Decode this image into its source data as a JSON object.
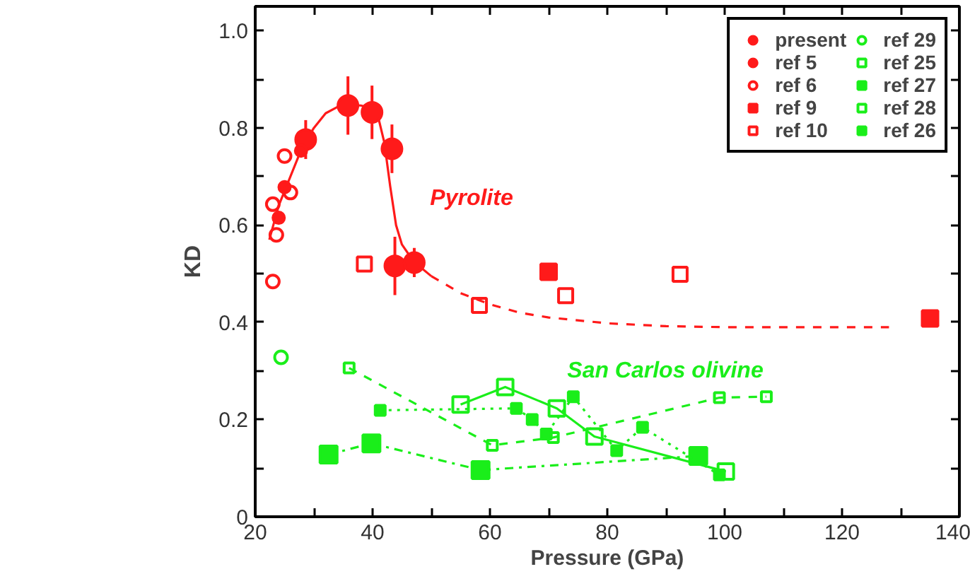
{
  "chart_data": {
    "type": "scatter",
    "xlabel": "Pressure (GPa)",
    "ylabel": "KD",
    "xlim": [
      20,
      140
    ],
    "ylim": [
      0,
      1.05
    ],
    "xticks": [
      20,
      {
        "value": 30,
        "label": null
      },
      40,
      {
        "value": 50,
        "label": null
      },
      60,
      {
        "value": 70,
        "label": null
      },
      80,
      {
        "value": 90,
        "label": null
      },
      100,
      {
        "value": 110,
        "label": null
      },
      120,
      {
        "value": 130,
        "label": null
      },
      140
    ],
    "yticks": [
      {
        "value": 0,
        "label": "0"
      },
      {
        "value": 0.1,
        "label": null
      },
      {
        "value": 0.2,
        "label": "0.2"
      },
      {
        "value": 0.3,
        "label": null
      },
      {
        "value": 0.4,
        "label": "0.4"
      },
      {
        "value": 0.5,
        "label": null
      },
      {
        "value": 0.6,
        "label": "0.6"
      },
      {
        "value": 0.7,
        "label": null
      },
      {
        "value": 0.8,
        "label": "0.8"
      },
      {
        "value": 0.9,
        "label": null
      },
      {
        "value": 1.0,
        "label": "1.0"
      }
    ],
    "grid": false,
    "legend": "top right",
    "series": [
      {
        "type": "line",
        "color": "#ff1a1a",
        "line_style": "solid",
        "marker": "none",
        "x": [
          22.4,
          24,
          26,
          28,
          30,
          32,
          34,
          36,
          38,
          40,
          41,
          42,
          43,
          44,
          45,
          47,
          50
        ],
        "values": [
          0.57,
          0.64,
          0.7,
          0.76,
          0.8,
          0.83,
          0.843,
          0.847,
          0.846,
          0.84,
          0.82,
          0.77,
          0.68,
          0.6,
          0.56,
          0.525,
          0.495
        ]
      },
      {
        "type": "line",
        "color": "#ff1a1a",
        "line_style": "dashed",
        "marker": "none",
        "x": [
          50,
          55,
          60,
          65,
          70,
          80,
          90,
          100,
          110,
          128
        ],
        "values": [
          0.495,
          0.46,
          0.437,
          0.42,
          0.41,
          0.398,
          0.392,
          0.39,
          0.39,
          0.39
        ]
      },
      {
        "name": "present",
        "color": "#ff1a1a",
        "marker": "circle",
        "x": [
          28.6,
          35.8,
          39.9,
          43.3,
          43.8,
          47.1
        ],
        "values": [
          0.776,
          0.846,
          0.832,
          0.757,
          0.516,
          0.523
        ],
        "errors": [
          0.04,
          0.06,
          0.055,
          0.05,
          0.06,
          0.03
        ]
      },
      {
        "name": "ref 5",
        "color": "#ff1a1a",
        "marker": "circle",
        "x": [
          24.0,
          25.0,
          27.8
        ],
        "values": [
          0.615,
          0.678,
          0.753
        ]
      },
      {
        "name": "ref 6",
        "color": "#ff1a1a",
        "marker": "circle_open",
        "x": [
          23.0,
          23.6,
          23.0,
          25.0,
          26.0
        ],
        "values": [
          0.484,
          0.58,
          0.643,
          0.742,
          0.667
        ]
      },
      {
        "name": "ref 9",
        "color": "#ff1a1a",
        "marker": "square",
        "x": [
          70.0,
          135.0
        ],
        "values": [
          0.504,
          0.408
        ]
      },
      {
        "name": "ref 10",
        "color": "#ff1a1a",
        "marker": "square_open",
        "x": [
          38.6,
          58.2,
          72.9,
          92.4
        ],
        "values": [
          0.52,
          0.435,
          0.455,
          0.499
        ]
      },
      {
        "name": "ref 29",
        "color": "#1aee1a",
        "marker": "circle_open",
        "x": [
          24.4
        ],
        "values": [
          0.328
        ]
      },
      {
        "name": "ref 25",
        "type": "line",
        "color": "#1aee1a",
        "marker": "square_open",
        "line_style": "solid",
        "x": [
          55.0,
          62.6,
          71.4,
          77.8,
          100.2
        ],
        "values": [
          0.231,
          0.267,
          0.223,
          0.165,
          0.093
        ]
      },
      {
        "name": "ref 27",
        "type": "line",
        "color": "#1aee1a",
        "marker": "square",
        "line_style": "dashdot",
        "x": [
          32.5,
          39.8,
          58.4,
          95.5
        ],
        "values": [
          0.128,
          0.151,
          0.096,
          0.125
        ]
      },
      {
        "name": "ref 28",
        "type": "line",
        "color": "#1aee1a",
        "marker": "square_open",
        "line_style": "dashed",
        "x": [
          36.0,
          60.4,
          70.8,
          99.1,
          107.1
        ],
        "values": [
          0.306,
          0.147,
          0.163,
          0.245,
          0.247
        ]
      },
      {
        "name": "ref 26",
        "type": "line",
        "color": "#1aee1a",
        "marker": "square",
        "line_style": "dotted",
        "x": [
          41.3,
          64.5,
          67.2,
          69.6,
          74.2,
          81.6,
          86.0,
          99.1
        ],
        "values": [
          0.219,
          0.223,
          0.2,
          0.17,
          0.247,
          0.136,
          0.184,
          0.086
        ]
      }
    ],
    "annotations": [
      "Pyrolite",
      "San Carlos olivine"
    ]
  }
}
